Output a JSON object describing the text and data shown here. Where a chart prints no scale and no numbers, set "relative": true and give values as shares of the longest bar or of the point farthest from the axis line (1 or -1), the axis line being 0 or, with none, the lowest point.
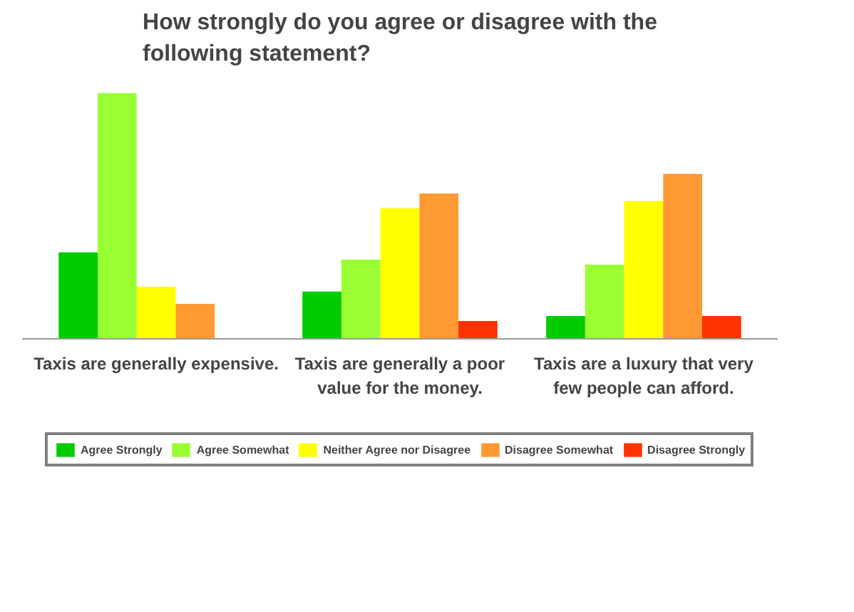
{
  "chart_data": {
    "type": "bar",
    "title": "How strongly do you agree or disagree with the following statement?",
    "relative": true,
    "legend": "bottom",
    "categories": [
      "Taxis are generally expensive.",
      "Taxis are generally a poor value for the money.",
      "Taxis are a luxury that very few people can afford."
    ],
    "series": [
      {
        "name": "Agree Strongly",
        "color": "#00cc00",
        "values": [
          0.35,
          0.19,
          0.09
        ]
      },
      {
        "name": "Agree Somewhat",
        "color": "#99ff33",
        "values": [
          1,
          0.32,
          0.3
        ]
      },
      {
        "name": "Neither Agree nor Disagree",
        "color": "#ffff00",
        "values": [
          0.21,
          0.53,
          0.56
        ]
      },
      {
        "name": "Disagree Somewhat",
        "color": "#ff9933",
        "values": [
          0.14,
          0.59,
          0.67
        ]
      },
      {
        "name": "Disagree Strongly",
        "color": "#ff3300",
        "values": [
          null,
          0.07,
          0.09
        ]
      }
    ]
  }
}
